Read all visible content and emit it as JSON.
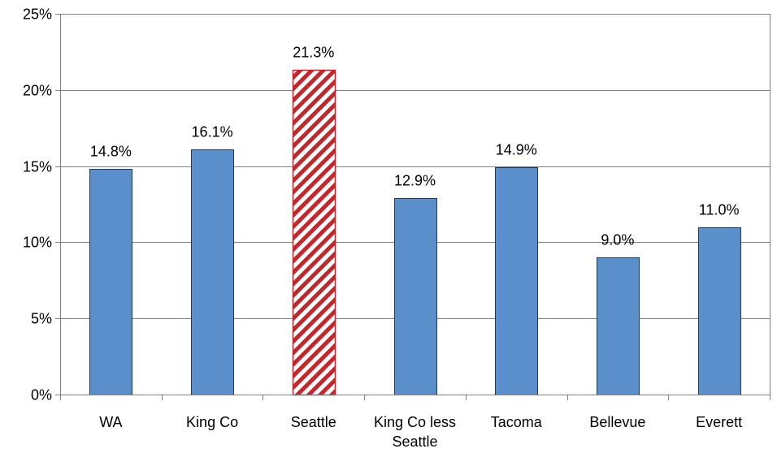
{
  "chart_data": {
    "type": "bar",
    "title": "",
    "xlabel": "",
    "ylabel": "",
    "categories": [
      "WA",
      "King Co",
      "Seattle",
      "King Co less Seattle",
      "Tacoma",
      "Bellevue",
      "Everett"
    ],
    "category_lines": [
      [
        "WA"
      ],
      [
        "King Co"
      ],
      [
        "Seattle"
      ],
      [
        "King Co less",
        "Seattle"
      ],
      [
        "Tacoma"
      ],
      [
        "Bellevue"
      ],
      [
        "Everett"
      ]
    ],
    "values": [
      14.8,
      16.1,
      21.3,
      12.9,
      14.9,
      9.0,
      11.0
    ],
    "value_labels": [
      "14.8%",
      "16.1%",
      "21.3%",
      "12.9%",
      "14.9%",
      "9.0%",
      "11.0%"
    ],
    "highlight_index": 2,
    "ylim": [
      0,
      25
    ],
    "yticks": [
      0,
      5,
      10,
      15,
      20,
      25
    ],
    "ytick_labels": [
      "0%",
      "5%",
      "10%",
      "15%",
      "20%",
      "25%"
    ],
    "grid": true,
    "legend": "none",
    "colors": {
      "bar_fill": "#5B8FCB",
      "bar_stroke": "#1F3A5F",
      "highlight_stripe": "#C0282E",
      "highlight_background": "#ffffff",
      "gridline": "#808080",
      "axis": "#808080"
    }
  }
}
